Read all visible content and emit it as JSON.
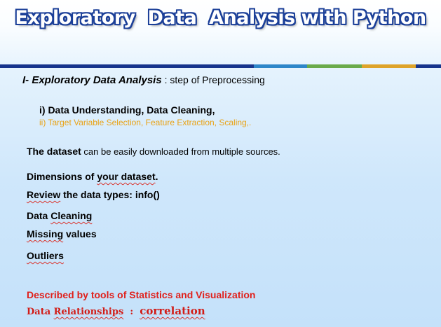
{
  "title": "Exploratory  Data  Analysis with Python",
  "colors": {
    "title_outline": "#1b3f98",
    "rule_navy": "#17348c",
    "rule_blue": "#2e86c9",
    "rule_green": "#6aaa4b",
    "rule_gold": "#dea32a",
    "orange_text": "#e9a317",
    "red_text": "#e0201b"
  },
  "heading": {
    "label": "I- Exploratory Data Analysis",
    "suffix": " : step of Preprocessing"
  },
  "steps": {
    "line1": "i) Data Understanding,  Data Cleaning,",
    "line2": "ii) Target Variable Selection,  Feature Extraction,  Scaling,."
  },
  "dataset": {
    "bold": "The dataset",
    "rest": " can be easily downloaded from multiple sources."
  },
  "dimensions": {
    "a": "Dimensions of ",
    "b": "your dataset",
    "c": "."
  },
  "review": {
    "a": "Review",
    "b": " the data types: info()"
  },
  "cleaning": {
    "a": "Data ",
    "b": "Cleaning"
  },
  "missing": {
    "a": "Missing",
    "b": " values"
  },
  "outliers": {
    "a": "Outliers"
  },
  "described": "Described by tools of Statistics and Visualization",
  "relationships": {
    "a": "Data ",
    "b": "Relationships",
    "c": "  :  ",
    "d": "correlation"
  }
}
